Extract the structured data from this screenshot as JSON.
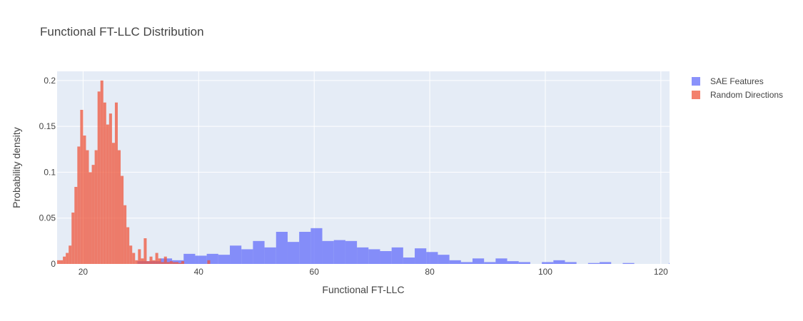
{
  "chart_data": {
    "type": "bar",
    "title": "Functional FT-LLC Distribution",
    "xlabel": "Functional FT-LLC",
    "ylabel": "Probability density",
    "xlim": [
      15.5,
      121.5
    ],
    "ylim": [
      0,
      0.21
    ],
    "x_ticks": [
      20,
      40,
      60,
      80,
      100,
      120
    ],
    "y_ticks": [
      0,
      0.05,
      0.1,
      0.15,
      0.2
    ],
    "y_tick_labels": [
      "0",
      "0.05",
      "0.1",
      "0.15",
      "0.2"
    ],
    "grid": true,
    "legend_position": "top-right",
    "barmode": "overlay",
    "series": [
      {
        "name": "SAE Features",
        "color": "#636efa",
        "opacity": 0.75,
        "bin_start": 15.4,
        "bin_width": 2.0,
        "values": [
          0,
          0,
          0,
          0,
          0,
          0,
          0,
          0.003,
          0.003,
          0.006,
          0.004,
          0.011,
          0.009,
          0.011,
          0.01,
          0.02,
          0.016,
          0.025,
          0.018,
          0.035,
          0.024,
          0.035,
          0.039,
          0.025,
          0.026,
          0.025,
          0.018,
          0.016,
          0.014,
          0.018,
          0.007,
          0.017,
          0.013,
          0.01,
          0.004,
          0.002,
          0.006,
          0.002,
          0.006,
          0.003,
          0.002,
          0,
          0.002,
          0.004,
          0.002,
          0,
          0.001,
          0.002,
          0,
          0.001,
          0,
          0,
          0,
          0.001
        ]
      },
      {
        "name": "Random Directions",
        "color": "#ef553b",
        "opacity": 0.75,
        "bin_start": 15.5,
        "bin_width": 0.5,
        "values": [
          0.004,
          0.004,
          0.008,
          0.012,
          0.02,
          0.056,
          0.084,
          0.128,
          0.168,
          0.14,
          0.124,
          0.1,
          0.108,
          0.124,
          0.188,
          0.2,
          0.176,
          0.152,
          0.164,
          0.132,
          0.176,
          0.124,
          0.096,
          0.064,
          0.04,
          0.02,
          0.012,
          0.004,
          0.016,
          0.006,
          0.028,
          0.003,
          0.008,
          0.004,
          0.012,
          0.006,
          0.002,
          0.008,
          0.002,
          0.003,
          0.002,
          0.002,
          0.001,
          0.003,
          0,
          0,
          0,
          0,
          0,
          0,
          0,
          0,
          0.004
        ]
      }
    ]
  }
}
